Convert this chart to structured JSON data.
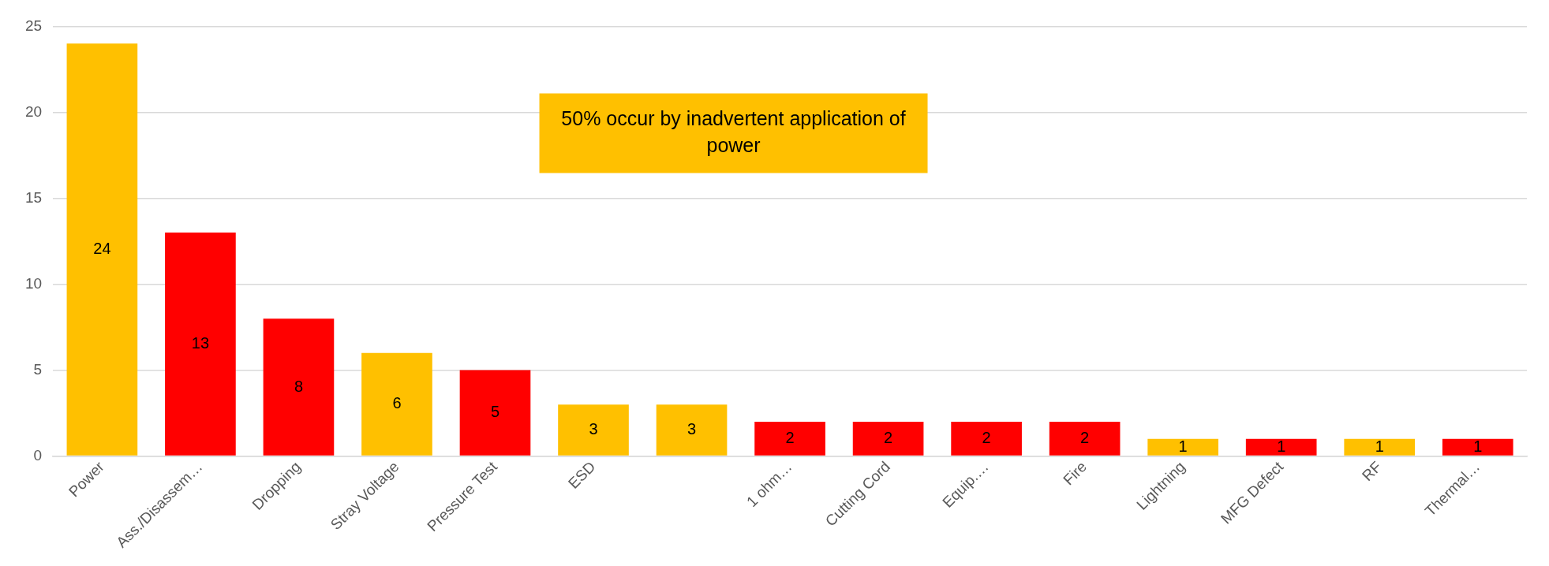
{
  "chart_data": {
    "type": "bar",
    "categories": [
      "Power",
      "Ass./Disassem…",
      "Dropping",
      "Stray Voltage",
      "Pressure Test",
      "ESD",
      null,
      "1 ohm…",
      "Cutting Cord",
      "Equip.…",
      "Fire",
      "Lightning",
      "MFG Defect",
      "RF",
      "Thermal…"
    ],
    "values": [
      24,
      13,
      8,
      6,
      5,
      3,
      3,
      2,
      2,
      2,
      2,
      1,
      1,
      1,
      1
    ],
    "colors": [
      "#ffc000",
      "#ff0000",
      "#ff0000",
      "#ffc000",
      "#ff0000",
      "#ffc000",
      "#ffc000",
      "#ff0000",
      "#ff0000",
      "#ff0000",
      "#ff0000",
      "#ffc000",
      "#ff0000",
      "#ffc000",
      "#ff0000"
    ],
    "ylim": [
      0,
      25
    ],
    "yticks": [
      0,
      5,
      10,
      15,
      20,
      25
    ],
    "grid": "y",
    "legend": false,
    "data_labels": true,
    "annotations": [
      "50% occur by inadvertent application of power"
    ]
  }
}
